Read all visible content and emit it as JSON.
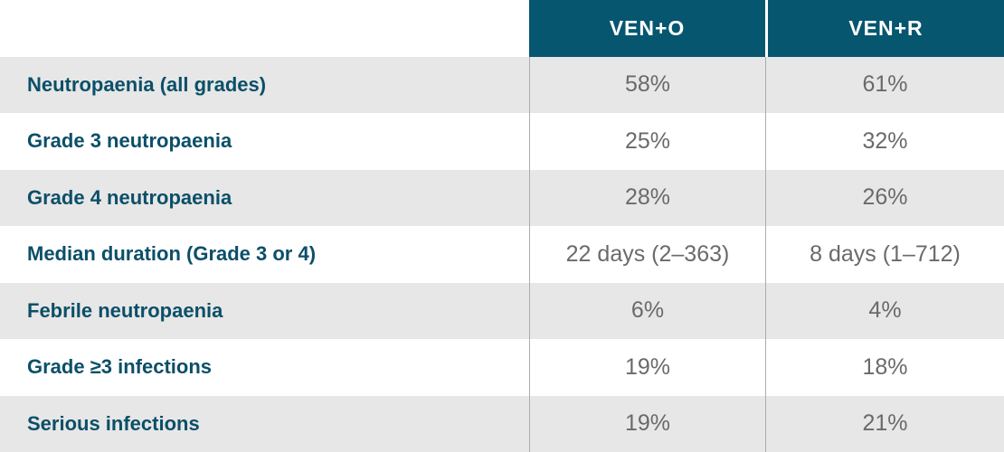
{
  "chart_data": {
    "type": "table",
    "title": "",
    "columns": [
      "VEN+O",
      "VEN+R"
    ],
    "rows": [
      {
        "label": "Neutropaenia (all grades)",
        "ven_o": "58%",
        "ven_r": "61%"
      },
      {
        "label": "Grade 3 neutropaenia",
        "ven_o": "25%",
        "ven_r": "32%"
      },
      {
        "label": "Grade 4 neutropaenia",
        "ven_o": "28%",
        "ven_r": "26%"
      },
      {
        "label": "Median duration (Grade 3 or 4)",
        "ven_o": "22 days (2–363)",
        "ven_r": "8 days (1–712)"
      },
      {
        "label": "Febrile neutropaenia",
        "ven_o": "6%",
        "ven_r": "4%"
      },
      {
        "label": "Grade ≥3 infections",
        "ven_o": "19%",
        "ven_r": "18%"
      },
      {
        "label": "Serious infections",
        "ven_o": "19%",
        "ven_r": "21%"
      }
    ],
    "layout": {
      "header_position": "top",
      "striped_rows": true,
      "shaded_row_indices": [
        0,
        2,
        4,
        6
      ],
      "grid": "vertical-dividers-only"
    }
  },
  "colors": {
    "header_bg": "#065670",
    "header_text": "#FFFFFF",
    "row_label_text": "#0B4F68",
    "value_text": "#6A6A6A",
    "stripe_bg": "#E7E7E7",
    "plain_bg": "#FFFFFF",
    "divider": "#ACACAC"
  }
}
